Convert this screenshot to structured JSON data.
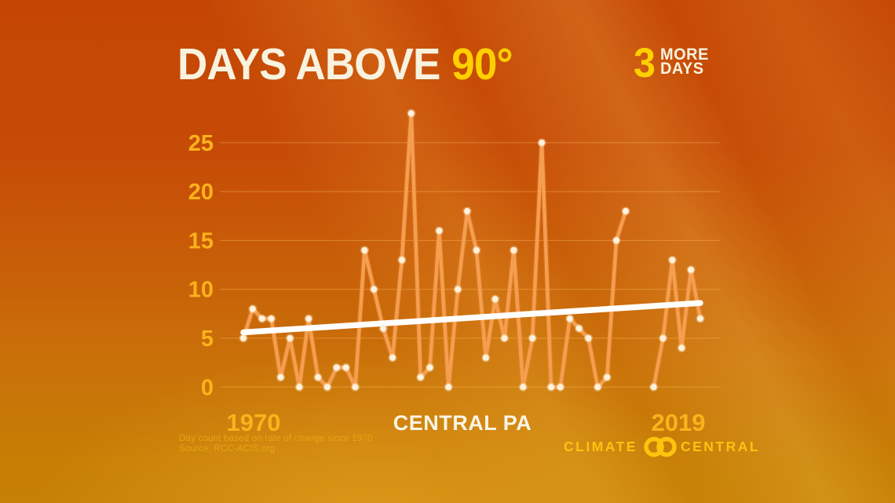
{
  "header": {
    "title_main": "DAYS ABOVE",
    "title_accent": "90°",
    "badge_number": "3",
    "badge_line1": "MORE",
    "badge_line2": "DAYS"
  },
  "footer": {
    "note_line1": "Day count based on rate of change since 1970",
    "note_line2": "Source: RCC-ACIS.org",
    "logo_left": "CLIMATE",
    "logo_right": "CENTRAL"
  },
  "colors": {
    "accent_yellow": "#FFD000",
    "cream": "#F8F2DE",
    "axis_label": "#FCB21C",
    "series_line": "#F59E4F",
    "marker": "#FFF2DC",
    "trend_line": "#FFFFFF",
    "logo_yellow": "#FCC40F",
    "background_top": "#C54604",
    "background_bottom": "#C68004"
  },
  "chart_data": {
    "type": "line",
    "title": "DAYS ABOVE 90°",
    "location_label": "CENTRAL PA",
    "x_start_label": "1970",
    "x_end_label": "2019",
    "year_start": 1970,
    "year_end": 2019,
    "values": [
      5,
      8,
      7,
      7,
      1,
      5,
      0,
      7,
      1,
      0,
      2,
      2,
      0,
      14,
      10,
      6,
      3,
      13,
      28,
      1,
      2,
      16,
      0,
      10,
      18,
      14,
      3,
      9,
      5,
      14,
      0,
      5,
      25,
      0,
      0,
      7,
      6,
      5,
      0,
      1,
      15,
      18,
      null,
      null,
      0,
      5,
      13,
      4,
      12,
      7
    ],
    "yticks": [
      0,
      5,
      10,
      15,
      20,
      25
    ],
    "ylim": [
      0,
      28
    ],
    "grid": true,
    "legend": "none",
    "trend": {
      "label": "3 MORE DAYS",
      "start_value": 5.6,
      "end_value": 8.6
    }
  }
}
